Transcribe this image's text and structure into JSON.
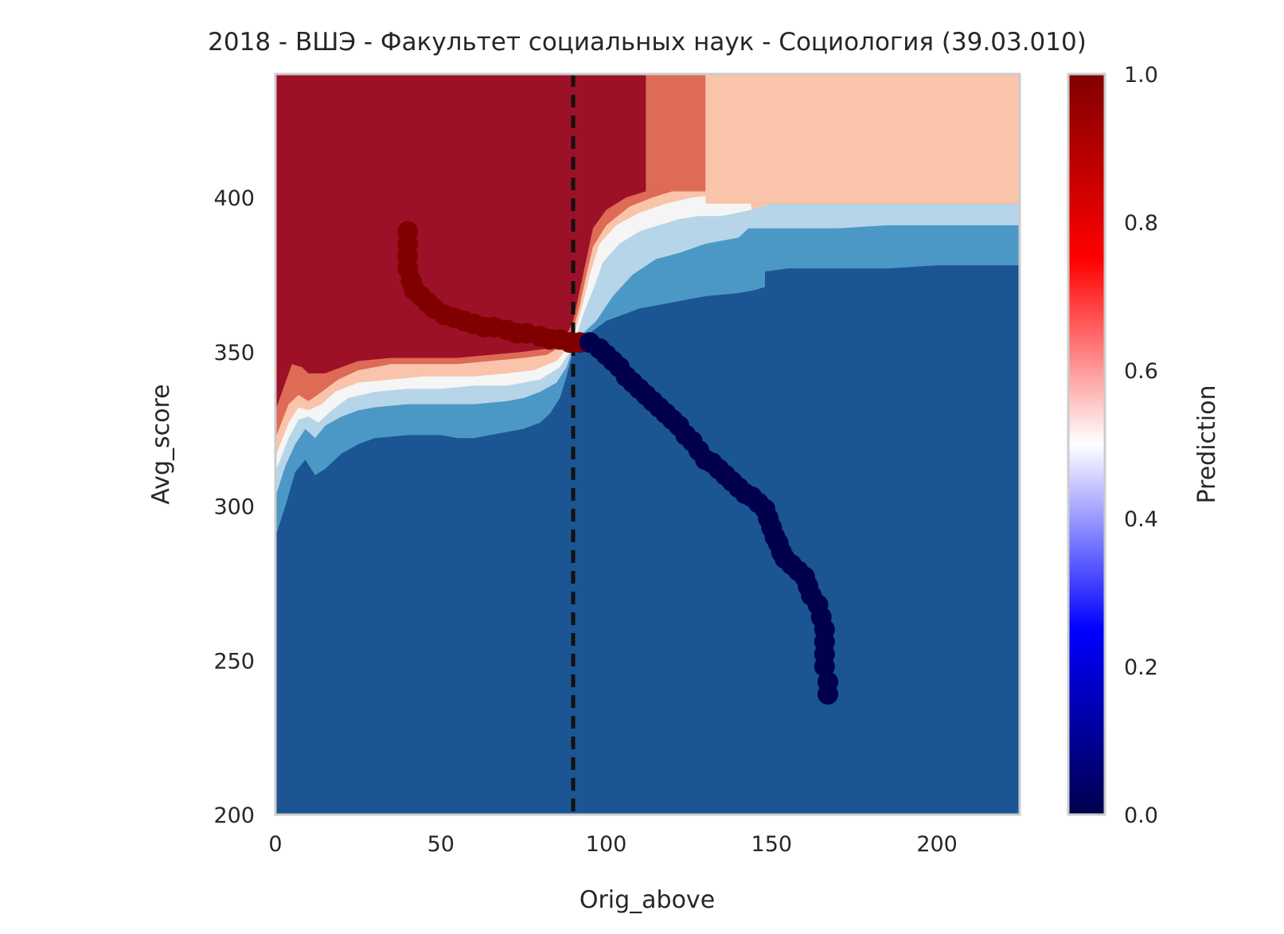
{
  "chart_data": {
    "type": "heatmap",
    "title": "2018 - ВШЭ - Факультет социальных наук - Социология (39.03.010)",
    "xlabel": "Orig_above",
    "ylabel": "Avg_score",
    "xlim": [
      0,
      225
    ],
    "ylim": [
      200,
      440
    ],
    "xticks": [
      0,
      50,
      100,
      150,
      200
    ],
    "yticks": [
      200,
      250,
      300,
      350,
      400
    ],
    "grid": false,
    "threshold_x": 90,
    "threshold_style": "dashed",
    "contour_levels": [
      0.0,
      0.1,
      0.3,
      0.45,
      0.55,
      0.7,
      0.9,
      1.0
    ],
    "contour_colors": [
      "#1b5593",
      "#4b98c6",
      "#b7d5e8",
      "#f5f5f5",
      "#f9c4aa",
      "#dd6b55",
      "#9c1127"
    ],
    "colorbar": {
      "label": "Prediction",
      "range": [
        0,
        1
      ],
      "ticks": [
        "0.0",
        "0.2",
        "0.4",
        "0.6",
        "0.8",
        "1.0"
      ],
      "colormap": "seismic"
    },
    "series": [
      {
        "class": "predicted-1",
        "color": "#800000",
        "points": [
          [
            40,
            389
          ],
          [
            40,
            385
          ],
          [
            40,
            381
          ],
          [
            40,
            377
          ],
          [
            41,
            373
          ],
          [
            42,
            370
          ],
          [
            44,
            368
          ],
          [
            46,
            366
          ],
          [
            48,
            364
          ],
          [
            51,
            362
          ],
          [
            54,
            361
          ],
          [
            57,
            360
          ],
          [
            60,
            359
          ],
          [
            63,
            358
          ],
          [
            66,
            358
          ],
          [
            70,
            357
          ],
          [
            73,
            356
          ],
          [
            76,
            356
          ],
          [
            80,
            355
          ],
          [
            83,
            354
          ],
          [
            86,
            354
          ],
          [
            89,
            353
          ],
          [
            92,
            353
          ]
        ]
      },
      {
        "class": "predicted-0",
        "color": "#00004c",
        "points": [
          [
            95,
            353
          ],
          [
            98,
            351
          ],
          [
            100,
            349
          ],
          [
            102,
            347
          ],
          [
            104,
            345
          ],
          [
            106,
            342
          ],
          [
            108,
            340
          ],
          [
            110,
            338
          ],
          [
            112,
            336
          ],
          [
            114,
            334
          ],
          [
            116,
            332
          ],
          [
            118,
            330
          ],
          [
            120,
            328
          ],
          [
            122,
            326
          ],
          [
            124,
            323
          ],
          [
            126,
            321
          ],
          [
            128,
            318
          ],
          [
            130,
            315
          ],
          [
            132,
            314
          ],
          [
            134,
            312
          ],
          [
            136,
            310
          ],
          [
            138,
            308
          ],
          [
            140,
            306
          ],
          [
            142,
            304
          ],
          [
            144,
            303
          ],
          [
            146,
            301
          ],
          [
            148,
            299
          ],
          [
            149,
            296
          ],
          [
            150,
            293
          ],
          [
            151,
            290
          ],
          [
            152,
            288
          ],
          [
            153,
            285
          ],
          [
            154,
            283
          ],
          [
            156,
            281
          ],
          [
            158,
            279
          ],
          [
            160,
            277
          ],
          [
            161,
            274
          ],
          [
            162,
            271
          ],
          [
            164,
            268
          ],
          [
            165,
            264
          ],
          [
            166,
            260
          ],
          [
            166,
            256
          ],
          [
            166,
            252
          ],
          [
            166,
            248
          ],
          [
            167,
            243
          ],
          [
            167,
            239
          ]
        ]
      }
    ]
  }
}
